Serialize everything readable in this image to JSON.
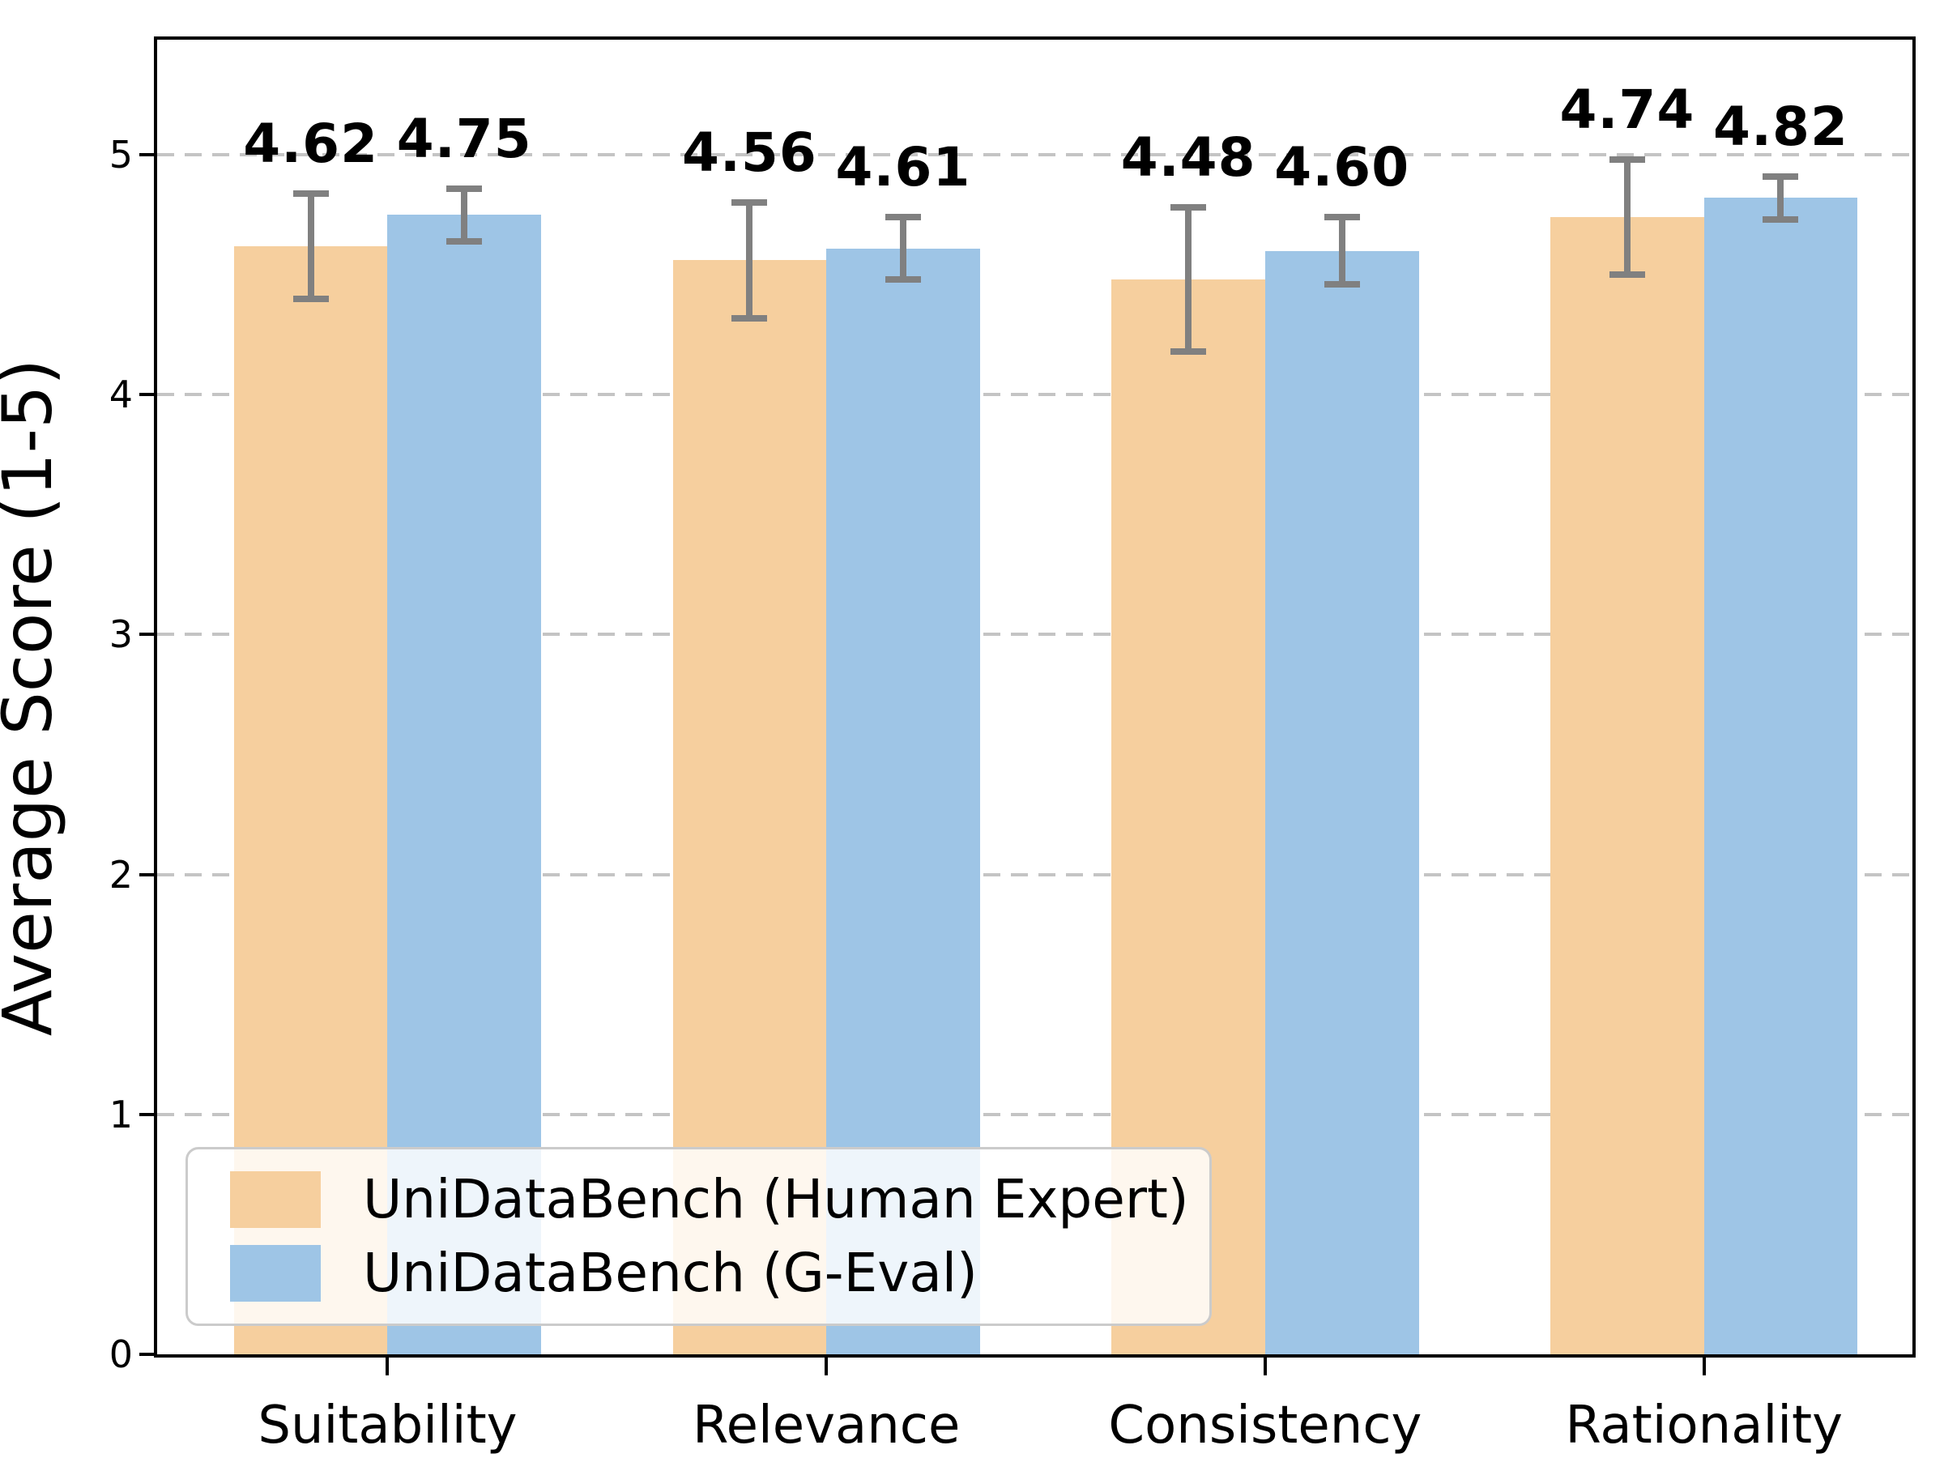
{
  "chart_data": {
    "type": "bar",
    "title": "",
    "xlabel": "",
    "ylabel": "Average Score (1-5)",
    "categories": [
      "Suitability",
      "Relevance",
      "Consistency",
      "Rationality"
    ],
    "series": [
      {
        "name": "UniDataBench (Human Expert)",
        "color": "#F6CF9E",
        "values": [
          4.62,
          4.56,
          4.48,
          4.74
        ],
        "errors": [
          0.22,
          0.24,
          0.3,
          0.24
        ],
        "value_labels": [
          "4.62",
          "4.56",
          "4.48",
          "4.74"
        ]
      },
      {
        "name": "UniDataBench (G-Eval)",
        "color": "#9EC5E6",
        "values": [
          4.75,
          4.61,
          4.6,
          4.82
        ],
        "errors": [
          0.11,
          0.13,
          0.14,
          0.09
        ],
        "value_labels": [
          "4.75",
          "4.61",
          "4.60",
          "4.82"
        ]
      }
    ],
    "yticks": [
      0,
      1,
      2,
      3,
      4,
      5
    ],
    "ylim": [
      0,
      5.48
    ],
    "bar_group_width": 0.7,
    "grid": "horizontal dashed",
    "grid_color": "#c4c4c4",
    "errorbar_color": "#808080",
    "legend_position": "lower left",
    "value_label_format": "2-decimals bold above error bar"
  }
}
